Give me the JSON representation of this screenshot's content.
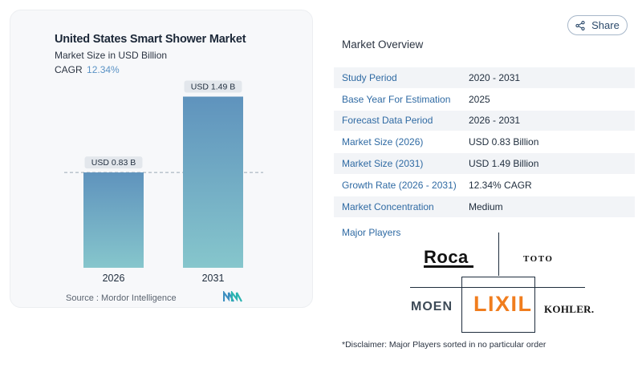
{
  "share": {
    "label": "Share",
    "icon": "share-icon"
  },
  "chart_data": {
    "type": "bar",
    "title": "United States Smart Shower Market",
    "subtitle": "Market Size in USD Billion",
    "cagr_label": "CAGR",
    "cagr_value": "12.34%",
    "categories": [
      "2026",
      "2031"
    ],
    "values": [
      0.83,
      1.49
    ],
    "data_labels": [
      "USD 0.83 B",
      "USD 1.49 B"
    ],
    "xlabel": "",
    "ylabel": "",
    "ylim": [
      0,
      1.6
    ],
    "grid": false,
    "reference_line": {
      "value": 0.83,
      "style": "dashed"
    },
    "colors": {
      "bar_top": "#5f93bd",
      "bar_bottom": "#86c6cc",
      "label_bg": "#e3e7ec"
    }
  },
  "source": {
    "label": "Source :",
    "value": "Mordor Intelligence"
  },
  "overview": {
    "title": "Market Overview",
    "rows": [
      {
        "label": "Study Period",
        "value": "2020 - 2031"
      },
      {
        "label": "Base Year For Estimation",
        "value": "2025"
      },
      {
        "label": "Forecast Data Period",
        "value": "2026 - 2031"
      },
      {
        "label": "Market Size (2026)",
        "value": "USD 0.83 Billion"
      },
      {
        "label": "Market Size (2031)",
        "value": "USD 1.49 Billion"
      },
      {
        "label": "Growth Rate (2026 - 2031)",
        "value": "12.34% CAGR"
      },
      {
        "label": "Market Concentration",
        "value": "Medium"
      }
    ]
  },
  "major_players": {
    "label": "Major Players",
    "logos": [
      "Roca",
      "TOTO",
      "MOEN",
      "LIXIL",
      "KOHLER."
    ]
  },
  "disclaimer": "*Disclaimer: Major Players sorted in no particular order"
}
